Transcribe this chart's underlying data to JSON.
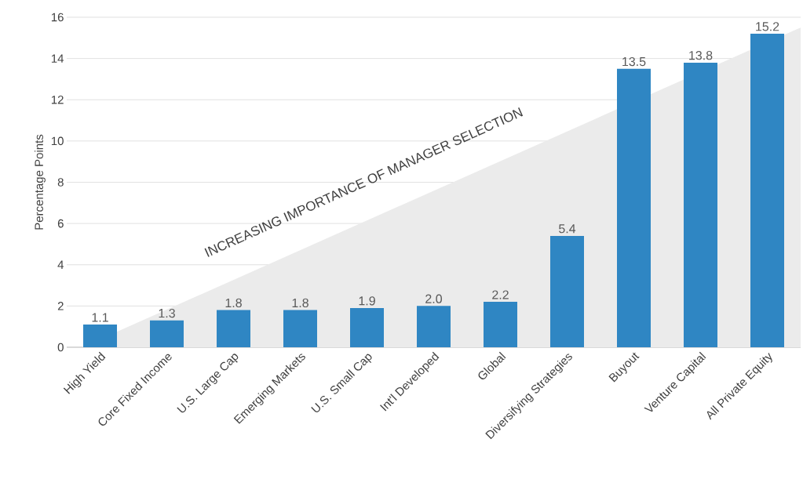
{
  "chart_data": {
    "type": "bar",
    "ylabel": "Percentage Points",
    "categories": [
      "High Yield",
      "Core Fixed Income",
      "U.S. Large Cap",
      "Emerging Markets",
      "U.S. Small Cap",
      "Int'l Developed",
      "Global",
      "Diversifying Strategies",
      "Buyout",
      "Venture Capital",
      "All Private Equity"
    ],
    "values": [
      1.1,
      1.3,
      1.8,
      1.8,
      1.9,
      2.0,
      2.2,
      5.4,
      13.5,
      13.8,
      15.2
    ],
    "value_labels": [
      "1.1",
      "1.3",
      "1.8",
      "1.8",
      "1.9",
      "2.0",
      "2.2",
      "5.4",
      "13.5",
      "13.8",
      "15.2"
    ],
    "color": "#2f86c3",
    "ylim": [
      0,
      16
    ],
    "yticks": [
      0,
      2,
      4,
      6,
      8,
      10,
      12,
      14,
      16
    ],
    "grid": "y",
    "annotations": [
      "INCREASING IMPORTANCE OF MANAGER SELECTION"
    ]
  }
}
